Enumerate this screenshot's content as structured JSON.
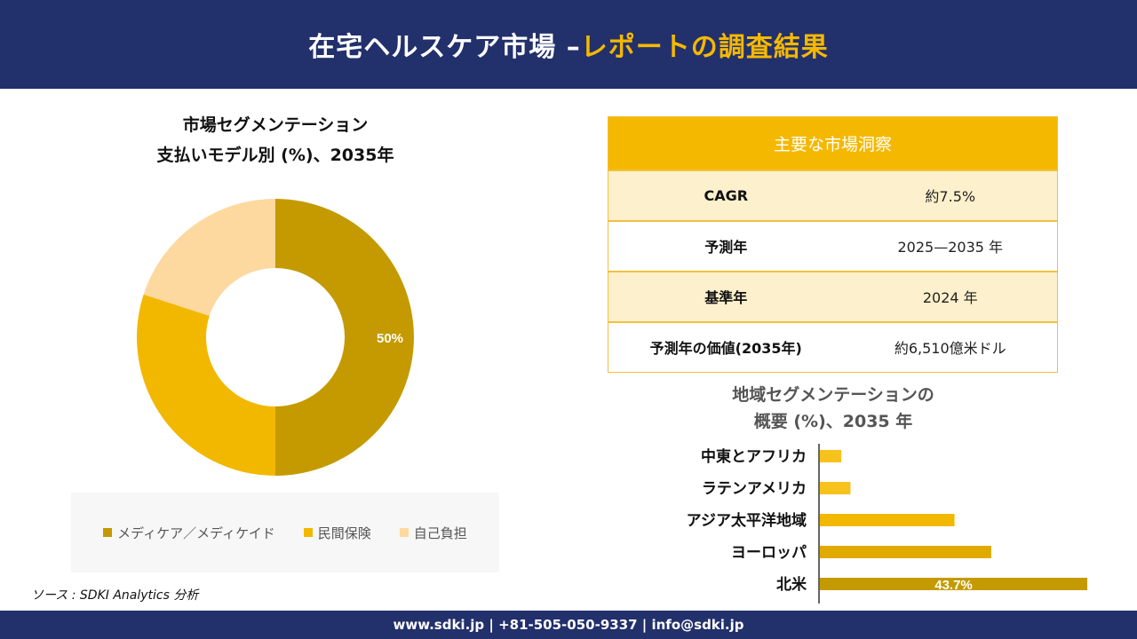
{
  "header": {
    "title_main": "在宅ヘルスケア市場 –",
    "title_accent": "レポートの調査結果"
  },
  "donut": {
    "title_line1": "市場セグメンテーション",
    "title_line2": "支払いモデル別 (%)、2035年"
  },
  "legend": {
    "items": [
      {
        "label": "メディケア／メディケイド",
        "color": "#c49a00"
      },
      {
        "label": "民間保険",
        "color": "#f2b800"
      },
      {
        "label": "自己負担",
        "color": "#fdd9a0"
      }
    ]
  },
  "insights": {
    "header": "主要な市場洞察",
    "rows": [
      {
        "key": "CAGR",
        "value": "約7.5%"
      },
      {
        "key": "予測年",
        "value": "2025—2035 年"
      },
      {
        "key": "基準年",
        "value": "2024 年"
      },
      {
        "key": "予測年の価値(2035年)",
        "value": "約6,510億米ドル"
      }
    ]
  },
  "bar": {
    "title_line1": "地域セグメンテーションの",
    "title_line2": "概要 (%)、2035 年"
  },
  "source": "ソース : SDKI Analytics 分析",
  "footer": {
    "text": "www.sdki.jp | +81-505-050-9337 | info@sdki.jp"
  },
  "chart_data": [
    {
      "type": "pie",
      "categories": [
        "メディケア／メディケイド",
        "民間保険",
        "自己負担"
      ],
      "values": [
        50,
        30,
        20
      ],
      "colors": [
        "#c49a00",
        "#f2b800",
        "#fdd9a0"
      ],
      "data_labels": [
        "50%",
        "",
        ""
      ],
      "donut": true
    },
    {
      "type": "bar",
      "orientation": "horizontal",
      "categories": [
        "中東とアフリカ",
        "ラテンアメリカ",
        "アジア太平洋地域",
        "ヨーロッパ",
        "北米"
      ],
      "values": [
        3.5,
        5,
        22,
        28,
        43.7
      ],
      "colors": [
        "#f8c21c",
        "#f8c21c",
        "#f2b800",
        "#e0aa00",
        "#c49a00"
      ],
      "data_labels": [
        "",
        "",
        "",
        "",
        "43.7%"
      ],
      "xlim": [
        0,
        45
      ]
    }
  ]
}
